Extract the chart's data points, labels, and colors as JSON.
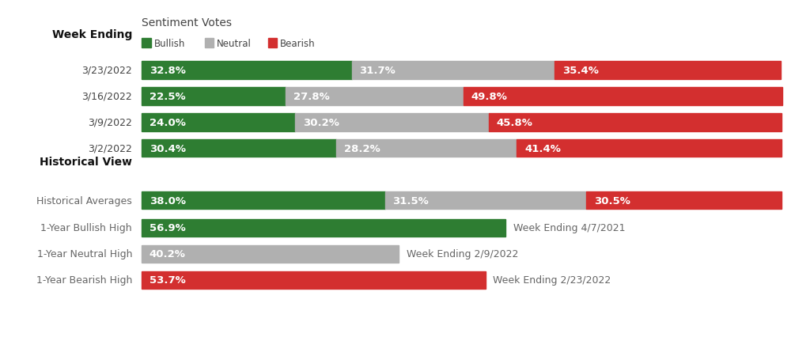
{
  "title": "Sentiment Votes",
  "legend_items": [
    "Bullish",
    "Neutral",
    "Bearish"
  ],
  "colors": {
    "bullish": "#2e7d32",
    "neutral": "#b0b0b0",
    "bearish": "#d32f2f"
  },
  "week_ending_label": "Week Ending",
  "historical_view_label": "Historical View",
  "weekly_rows": [
    {
      "label": "3/23/2022",
      "bullish": 32.8,
      "neutral": 31.7,
      "bearish": 35.4
    },
    {
      "label": "3/16/2022",
      "bullish": 22.5,
      "neutral": 27.8,
      "bearish": 49.8
    },
    {
      "label": "3/9/2022",
      "bullish": 24.0,
      "neutral": 30.2,
      "bearish": 45.8
    },
    {
      "label": "3/2/2022",
      "bullish": 30.4,
      "neutral": 28.2,
      "bearish": 41.4
    }
  ],
  "historical_rows": [
    {
      "label": "Historical Averages",
      "segments": [
        {
          "value": 38.0,
          "color": "bullish",
          "text": "38.0%",
          "annotation": null
        },
        {
          "value": 31.5,
          "color": "neutral",
          "text": "31.5%",
          "annotation": null
        },
        {
          "value": 30.5,
          "color": "bearish",
          "text": "30.5%",
          "annotation": null
        }
      ]
    },
    {
      "label": "1-Year Bullish High",
      "segments": [
        {
          "value": 56.9,
          "color": "bullish",
          "text": "56.9%",
          "annotation": "Week Ending 4/7/2021"
        }
      ]
    },
    {
      "label": "1-Year Neutral High",
      "segments": [
        {
          "value": 40.2,
          "color": "neutral",
          "text": "40.2%",
          "annotation": "Week Ending 2/9/2022"
        }
      ]
    },
    {
      "label": "1-Year Bearish High",
      "segments": [
        {
          "value": 53.7,
          "color": "bearish",
          "text": "53.7%",
          "annotation": "Week Ending 2/23/2022"
        }
      ]
    }
  ],
  "background_color": "#ffffff",
  "bar_height": 0.62,
  "bar_text_fontsize": 9.5,
  "label_fontsize": 9,
  "header_fontsize": 10,
  "annotation_fontsize": 9,
  "title_fontsize": 10
}
